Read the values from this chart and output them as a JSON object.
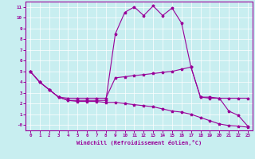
{
  "xlabel": "Windchill (Refroidissement éolien,°C)",
  "bg_color": "#c8eef0",
  "line_color": "#990099",
  "grid_color": "#ffffff",
  "xlim": [
    -0.5,
    23.5
  ],
  "ylim": [
    -0.5,
    11.5
  ],
  "xticks": [
    0,
    1,
    2,
    3,
    4,
    5,
    6,
    7,
    8,
    9,
    10,
    11,
    12,
    13,
    14,
    15,
    16,
    17,
    18,
    19,
    20,
    21,
    22,
    23
  ],
  "yticks": [
    0,
    1,
    2,
    3,
    4,
    5,
    6,
    7,
    8,
    9,
    10,
    11
  ],
  "ytick_labels": [
    "-0",
    "1",
    "2",
    "3",
    "4",
    "5",
    "6",
    "7",
    "8",
    "9",
    "10",
    "11"
  ],
  "curve1_x": [
    0,
    1,
    2,
    3,
    4,
    5,
    6,
    7,
    8,
    9,
    10,
    11,
    12,
    13,
    14,
    15,
    16,
    17,
    18,
    19,
    20,
    21,
    22,
    23
  ],
  "curve1_y": [
    5.0,
    4.0,
    3.3,
    2.6,
    2.3,
    2.3,
    2.3,
    2.3,
    2.3,
    8.5,
    10.5,
    11.0,
    10.2,
    11.1,
    10.2,
    10.9,
    9.5,
    5.4,
    2.6,
    2.6,
    2.5,
    1.3,
    0.9,
    -0.1
  ],
  "curve2_x": [
    0,
    1,
    2,
    3,
    4,
    5,
    6,
    7,
    8,
    9,
    10,
    11,
    12,
    13,
    14,
    15,
    16,
    17,
    18,
    19,
    20,
    21,
    22,
    23
  ],
  "curve2_y": [
    5.0,
    4.0,
    3.3,
    2.6,
    2.5,
    2.5,
    2.5,
    2.5,
    2.5,
    4.4,
    4.5,
    4.6,
    4.7,
    4.8,
    4.9,
    5.0,
    5.2,
    5.4,
    2.6,
    2.5,
    2.5,
    2.5,
    2.5,
    2.5
  ],
  "curve3_x": [
    0,
    1,
    2,
    3,
    4,
    5,
    6,
    7,
    8,
    9,
    10,
    11,
    12,
    13,
    14,
    15,
    16,
    17,
    18,
    19,
    20,
    21,
    22,
    23
  ],
  "curve3_y": [
    5.0,
    4.0,
    3.3,
    2.6,
    2.3,
    2.2,
    2.2,
    2.2,
    2.1,
    2.1,
    2.0,
    1.9,
    1.8,
    1.7,
    1.5,
    1.3,
    1.2,
    1.0,
    0.7,
    0.4,
    0.1,
    -0.05,
    -0.1,
    -0.2
  ]
}
